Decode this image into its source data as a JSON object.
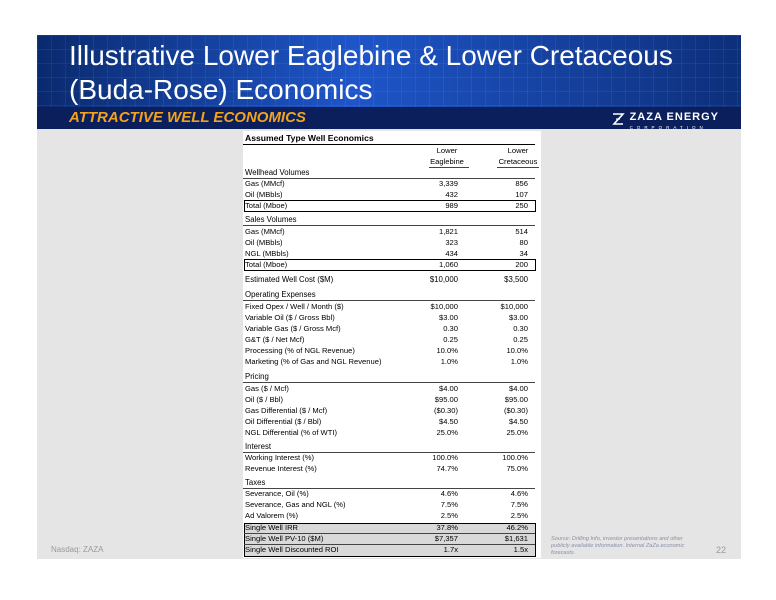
{
  "header": {
    "title": "Illustrative Lower Eaglebine & Lower Cretaceous (Buda-Rose) Economics",
    "subtitle": "ATTRACTIVE WELL ECONOMICS",
    "logo_name": "ZAZA ENERGY",
    "logo_sub": "CORPORATION"
  },
  "table": {
    "title": "Assumed Type Well Economics",
    "col1_line1": "Lower",
    "col1_line2": "Eaglebine",
    "col2_line1": "Lower",
    "col2_line2": "Cretaceous",
    "sections": {
      "wellhead": {
        "label": "Wellhead Volumes",
        "rows": [
          {
            "label": "Gas (MMcf)",
            "v1": "3,339",
            "v2": "856"
          },
          {
            "label": "Oil (MBbls)",
            "v1": "432",
            "v2": "107"
          },
          {
            "label": "Total (Mboe)",
            "v1": "989",
            "v2": "250"
          }
        ]
      },
      "sales": {
        "label": "Sales Volumes",
        "rows": [
          {
            "label": "Gas (MMcf)",
            "v1": "1,821",
            "v2": "514"
          },
          {
            "label": "Oil (MBbls)",
            "v1": "323",
            "v2": "80"
          },
          {
            "label": "NGL (MBbls)",
            "v1": "434",
            "v2": "34"
          },
          {
            "label": "Total (Mboe)",
            "v1": "1,060",
            "v2": "200"
          }
        ]
      },
      "cost": {
        "label": "Estimated Well Cost ($M)",
        "v1": "$10,000",
        "v2": "$3,500"
      },
      "opex": {
        "label": "Operating Expenses",
        "rows": [
          {
            "label": "Fixed Opex / Well / Month ($)",
            "v1": "$10,000",
            "v2": "$10,000"
          },
          {
            "label": "Variable Oil ($ / Gross Bbl)",
            "v1": "$3.00",
            "v2": "$3.00"
          },
          {
            "label": "Variable Gas ($ / Gross Mcf)",
            "v1": "0.30",
            "v2": "0.30"
          },
          {
            "label": "G&T ($ / Net Mcf)",
            "v1": "0.25",
            "v2": "0.25"
          },
          {
            "label": "Processing (% of NGL Revenue)",
            "v1": "10.0%",
            "v2": "10.0%"
          },
          {
            "label": "Marketing (% of Gas and NGL Revenue)",
            "v1": "1.0%",
            "v2": "1.0%"
          }
        ]
      },
      "pricing": {
        "label": "Pricing",
        "rows": [
          {
            "label": "Gas ($ / Mcf)",
            "v1": "$4.00",
            "v2": "$4.00"
          },
          {
            "label": "Oil ($ / Bbl)",
            "v1": "$95.00",
            "v2": "$95.00"
          },
          {
            "label": "Gas Differential ($ / Mcf)",
            "v1": "($0.30)",
            "v2": "($0.30)"
          },
          {
            "label": "Oil Differential ($ / Bbl)",
            "v1": "$4.50",
            "v2": "$4.50"
          },
          {
            "label": "NGL Differential (% of WTI)",
            "v1": "25.0%",
            "v2": "25.0%"
          }
        ]
      },
      "interest": {
        "label": "Interest",
        "rows": [
          {
            "label": "Working Interest (%)",
            "v1": "100.0%",
            "v2": "100.0%"
          },
          {
            "label": "Revenue Interest (%)",
            "v1": "74.7%",
            "v2": "75.0%"
          }
        ]
      },
      "taxes": {
        "label": "Taxes",
        "rows": [
          {
            "label": "Severance, Oil (%)",
            "v1": "4.6%",
            "v2": "4.6%"
          },
          {
            "label": "Severance, Gas and NGL (%)",
            "v1": "7.5%",
            "v2": "7.5%"
          },
          {
            "label": "Ad Valorem (%)",
            "v1": "2.5%",
            "v2": "2.5%"
          }
        ]
      },
      "results": {
        "rows": [
          {
            "label": "Single Well IRR",
            "v1": "37.8%",
            "v2": "46.2%"
          },
          {
            "label": "Single Well PV-10 ($M)",
            "v1": "$7,357",
            "v2": "$1,631"
          },
          {
            "label": "Single Well Discounted ROI",
            "v1": "1.7x",
            "v2": "1.5x"
          }
        ]
      }
    }
  },
  "footer": {
    "ticker": "Nasdaq: ZAZA",
    "page": "22",
    "source": "Source: Drilling Info, investor presentations and other publicly available information. Internal ZaZa economic forecasts."
  }
}
